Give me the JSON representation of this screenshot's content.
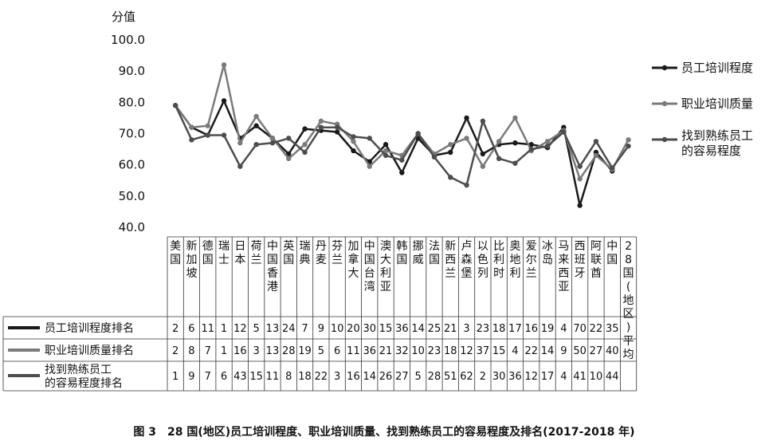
{
  "chart_data": {
    "type": "line",
    "ylabel": "分值",
    "ylim": [
      40,
      100
    ],
    "yticks": [
      "100.0",
      "90.0",
      "80.0",
      "70.0",
      "60.0",
      "50.0",
      "40.0"
    ],
    "categories": [
      "美国",
      "新加坡",
      "德国",
      "瑞士",
      "日本",
      "荷兰",
      "中国香港",
      "英国",
      "瑞典",
      "丹麦",
      "芬兰",
      "加拿大",
      "中国台湾",
      "澳大利亚",
      "韩国",
      "挪威",
      "法国",
      "新西兰",
      "卢森堡",
      "以色列",
      "比利时",
      "奥地利",
      "爱尔兰",
      "冰岛",
      "马来西亚",
      "西班牙",
      "阿联酋",
      "中国",
      "28国(地区)平均"
    ],
    "series": [
      {
        "name": "员工培训程度",
        "color": "#1a1a1a",
        "values": [
          79,
          72,
          69.5,
          80.5,
          68.5,
          72.5,
          68.5,
          63.5,
          71.5,
          71,
          70.5,
          64.5,
          61,
          66.5,
          57.5,
          68.5,
          63,
          64,
          75,
          63.5,
          66.5,
          67,
          66.5,
          65.5,
          72,
          47,
          64,
          58,
          null
        ]
      },
      {
        "name": "职业培训质量",
        "color": "#7a7a7a",
        "values": [
          79,
          72,
          72.5,
          92,
          67,
          75.5,
          68.5,
          62,
          66.5,
          74,
          73,
          67.5,
          59.5,
          64.5,
          63,
          70,
          63.5,
          66.5,
          68.5,
          59.5,
          67.5,
          75,
          64.5,
          67.5,
          71,
          55.5,
          63,
          58.5,
          68
        ]
      },
      {
        "name": "找到熟练员工的容易程度",
        "color": "#4d4d4d",
        "values": [
          79,
          68,
          69.5,
          69.5,
          59.5,
          66.5,
          67,
          68.5,
          64,
          72,
          72,
          69,
          68.5,
          63,
          61.5,
          70,
          62.5,
          56,
          53.5,
          74,
          62,
          60.5,
          65,
          66,
          70.5,
          59.5,
          67.5,
          59,
          66
        ]
      }
    ],
    "rank_table": {
      "rows": [
        {
          "label": "员工培训程度排名",
          "values": [
            "2",
            "6",
            "11",
            "1",
            "12",
            "5",
            "13",
            "24",
            "7",
            "9",
            "10",
            "20",
            "30",
            "15",
            "36",
            "14",
            "25",
            "21",
            "3",
            "23",
            "18",
            "17",
            "16",
            "19",
            "4",
            "70",
            "22",
            "35",
            ""
          ]
        },
        {
          "label": "职业培训质量排名",
          "values": [
            "2",
            "8",
            "7",
            "1",
            "16",
            "3",
            "13",
            "28",
            "19",
            "5",
            "6",
            "11",
            "36",
            "21",
            "32",
            "10",
            "23",
            "18",
            "12",
            "37",
            "15",
            "4",
            "22",
            "14",
            "9",
            "50",
            "27",
            "40",
            ""
          ]
        },
        {
          "label": "找到熟练员工的容易程度排名",
          "values": [
            "1",
            "9",
            "7",
            "6",
            "43",
            "15",
            "11",
            "8",
            "18",
            "22",
            "3",
            "16",
            "14",
            "26",
            "27",
            "5",
            "28",
            "51",
            "62",
            "2",
            "30",
            "36",
            "12",
            "17",
            "4",
            "41",
            "10",
            "44",
            ""
          ]
        }
      ]
    },
    "legend": {
      "placement": "right"
    }
  },
  "caption": "图 3　28 国(地区)员工培训程度、职业培训质量、找到熟练员工的容易程度及排名(2017-2018 年)"
}
